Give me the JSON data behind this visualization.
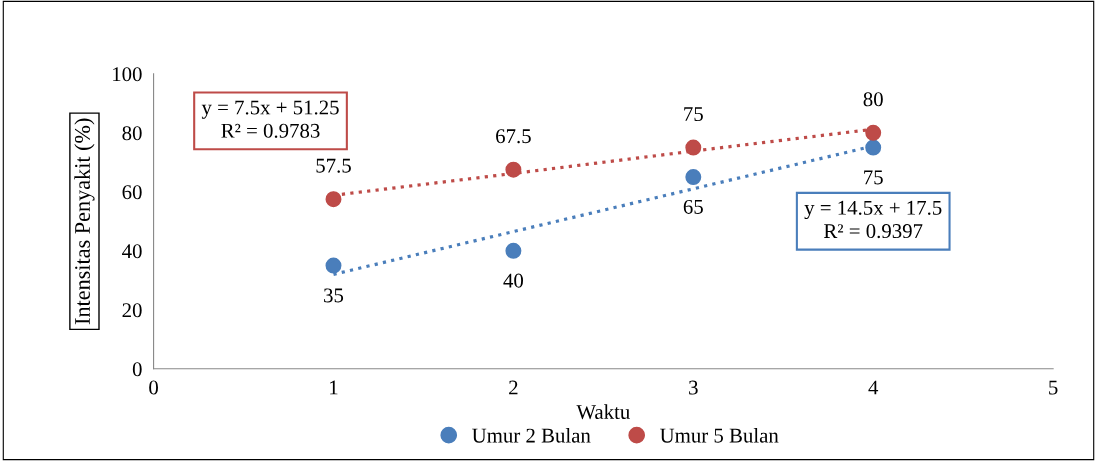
{
  "chart_data": {
    "type": "scatter",
    "xlabel": "Waktu",
    "ylabel": "Intensitas Penyakit (%)",
    "x": [
      1,
      2,
      3,
      4
    ],
    "series": [
      {
        "name": "Umur 2 Bulan",
        "color": "#4a7ebb",
        "values": [
          35,
          40,
          65,
          75
        ],
        "data_labels": true,
        "marker": "circle"
      },
      {
        "name": "Umur 5 Bulan",
        "color": "#be4b48",
        "values": [
          57.5,
          67.5,
          75,
          80
        ],
        "data_labels": true,
        "marker": "circle"
      },
      {
        "type": "line",
        "color": "#4a7ebb",
        "values": [
          32,
          46.5,
          61,
          75.5
        ],
        "line_style": "dotted"
      },
      {
        "type": "line",
        "color": "#be4b48",
        "values": [
          58.8,
          66.2,
          73.8,
          81.2
        ],
        "line_style": "dotted"
      }
    ],
    "annotations": [
      "y = 14.5x + 17.5\nR² = 0.9397",
      "y = 7.5x + 51.25\nR² = 0.9783"
    ],
    "xlim": [
      0,
      5
    ],
    "xticks": [
      0,
      1,
      2,
      3,
      4,
      5
    ],
    "ylim": [
      0,
      100
    ],
    "yticks": [
      0,
      20,
      40,
      60,
      80,
      100
    ],
    "grid": false,
    "legend": "bottom"
  }
}
